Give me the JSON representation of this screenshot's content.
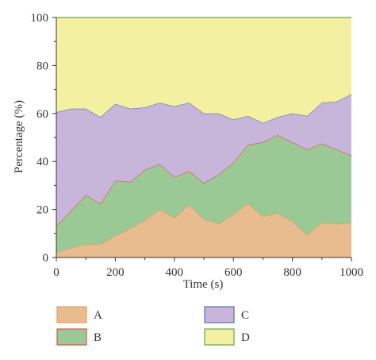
{
  "chart_data": {
    "type": "area",
    "stacked": true,
    "xlabel": "Time (s)",
    "ylabel": "Percentage (%)",
    "xlim": [
      0,
      1000
    ],
    "ylim": [
      0,
      100
    ],
    "xticks": [
      0,
      200,
      400,
      600,
      800,
      1000
    ],
    "yticks": [
      0,
      20,
      40,
      60,
      80,
      100
    ],
    "grid": false,
    "legend_position": "bottom",
    "x": [
      0,
      50,
      100,
      150,
      200,
      250,
      300,
      350,
      400,
      450,
      500,
      550,
      600,
      650,
      700,
      750,
      800,
      850,
      900,
      950,
      1000
    ],
    "series": [
      {
        "name": "A",
        "fill": "#e9bc8f",
        "stroke": "#d9a06b",
        "values": [
          2,
          4,
          5.5,
          5.5,
          9,
          12,
          15.5,
          20,
          16.5,
          22,
          16,
          14,
          18,
          22.5,
          17,
          18.5,
          15,
          9.5,
          14.5,
          14,
          14.5
        ]
      },
      {
        "name": "B",
        "fill": "#9bc996",
        "stroke": "#d9534f",
        "values": [
          11,
          15.5,
          20.5,
          17,
          23,
          19.5,
          21,
          19,
          17,
          14,
          15,
          20.5,
          21.5,
          24.5,
          31,
          32.5,
          33,
          35.5,
          33,
          31,
          28
        ]
      },
      {
        "name": "C",
        "fill": "#c8b6da",
        "stroke": "#5b6fb5",
        "values": [
          47.5,
          42.5,
          36,
          36,
          32,
          30.5,
          26,
          25.5,
          29.5,
          28.5,
          29,
          25.5,
          18,
          12,
          8,
          7.5,
          12,
          14,
          17,
          20,
          25.5
        ]
      },
      {
        "name": "D",
        "fill": "#f3f0a2",
        "stroke": "#6da34d",
        "values": [
          39.5,
          38,
          38,
          41.5,
          36,
          38,
          37.5,
          35.5,
          37,
          35.5,
          40,
          40,
          42.5,
          41,
          44,
          41.5,
          40,
          41,
          35.5,
          35,
          32
        ]
      }
    ],
    "axis_color": "#333333"
  }
}
